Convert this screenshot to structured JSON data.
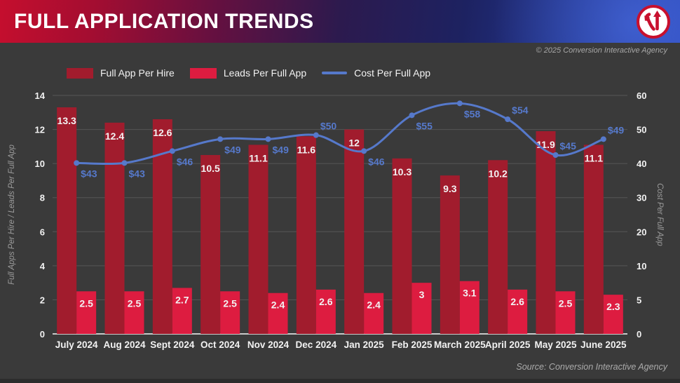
{
  "header": {
    "title": "FULL APPLICATION TRENDS",
    "copyright": "© 2025 Conversion Interactive Agency"
  },
  "footer": {
    "source": "Source: Conversion Interactive Agency"
  },
  "colors": {
    "background": "#3a3a3a",
    "bar_dark_red": "#a11c2d",
    "bar_crimson": "#dd1c40",
    "line_blue": "#5679cb",
    "grid": "#565656",
    "baseline": "#c9c9c9",
    "axis_text": "#f2f2f2",
    "axis_title": "#9b9b9b"
  },
  "legend": {
    "items": [
      {
        "label": "Full App Per Hire",
        "color": "#a11c2d",
        "type": "bar"
      },
      {
        "label": "Leads Per Full App",
        "color": "#dd1c40",
        "type": "bar"
      },
      {
        "label": "Cost Per Full App",
        "color": "#5679cb",
        "type": "line"
      }
    ]
  },
  "chart_data": {
    "type": "combo",
    "subtypes": [
      "bar",
      "bar",
      "line"
    ],
    "categories": [
      "July 2024",
      "Aug 2024",
      "Sept 2024",
      "Oct 2024",
      "Nov 2024",
      "Dec 2024",
      "Jan 2025",
      "Feb 2025",
      "March 2025",
      "April 2025",
      "May 2025",
      "June 2025"
    ],
    "series": [
      {
        "name": "Full App Per Hire",
        "type": "bar",
        "axis": "left",
        "color": "#a11c2d",
        "values": [
          13.3,
          12.4,
          12.6,
          10.5,
          11.1,
          11.6,
          12,
          10.3,
          9.3,
          10.2,
          11.9,
          11.1
        ]
      },
      {
        "name": "Leads Per Full App",
        "type": "bar",
        "axis": "left",
        "color": "#dd1c40",
        "values": [
          2.5,
          2.5,
          2.7,
          2.5,
          2.4,
          2.6,
          2.4,
          3,
          3.1,
          2.6,
          2.5,
          2.3
        ]
      },
      {
        "name": "Cost Per Full App",
        "type": "line",
        "axis": "right",
        "color": "#5679cb",
        "values": [
          43,
          43,
          46,
          49,
          49,
          50,
          46,
          55,
          58,
          54,
          45,
          49
        ],
        "label_prefix": "$",
        "label_side": [
          "below",
          "below",
          "below",
          "below",
          "below",
          "above",
          "below",
          "below",
          "below",
          "above",
          "above",
          "above"
        ]
      }
    ],
    "left_axis": {
      "title": "Full Apps Per Hire / Leads Per Full App",
      "min": 0,
      "max": 14,
      "ticks": [
        0,
        2,
        4,
        6,
        8,
        10,
        12,
        14
      ]
    },
    "right_axis": {
      "title": "Cost Per Full App",
      "min": 0,
      "max": 60,
      "tick_labels_bottom_to_top": [
        0,
        5,
        10,
        20,
        30,
        40,
        50,
        60
      ]
    },
    "grid": true,
    "legend_position": "top-left"
  }
}
